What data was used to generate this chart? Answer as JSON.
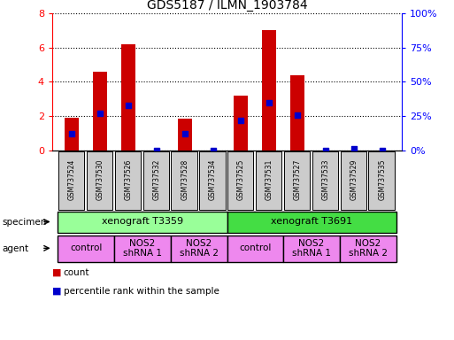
{
  "title": "GDS5187 / ILMN_1903784",
  "samples": [
    "GSM737524",
    "GSM737530",
    "GSM737526",
    "GSM737532",
    "GSM737528",
    "GSM737534",
    "GSM737525",
    "GSM737531",
    "GSM737527",
    "GSM737533",
    "GSM737529",
    "GSM737535"
  ],
  "counts": [
    1.9,
    4.6,
    6.2,
    0.0,
    1.85,
    0.0,
    3.2,
    7.0,
    4.4,
    0.0,
    0.0,
    0.0
  ],
  "percentile_ranks": [
    12,
    27,
    33,
    0,
    12,
    0,
    22,
    35,
    26,
    0,
    1,
    0
  ],
  "bar_color": "#cc0000",
  "dot_color": "#0000cc",
  "ylim_left": [
    0,
    8
  ],
  "ylim_right": [
    0,
    100
  ],
  "yticks_left": [
    0,
    2,
    4,
    6,
    8
  ],
  "yticks_right": [
    0,
    25,
    50,
    75,
    100
  ],
  "ytick_labels_right": [
    "0%",
    "25%",
    "50%",
    "75%",
    "100%"
  ],
  "specimen_color_t3359": "#99ff99",
  "specimen_color_t3691": "#44dd44",
  "agent_color": "#ee88ee",
  "sample_bg_color": "#cccccc",
  "background_color": "#ffffff",
  "bar_width": 0.5
}
